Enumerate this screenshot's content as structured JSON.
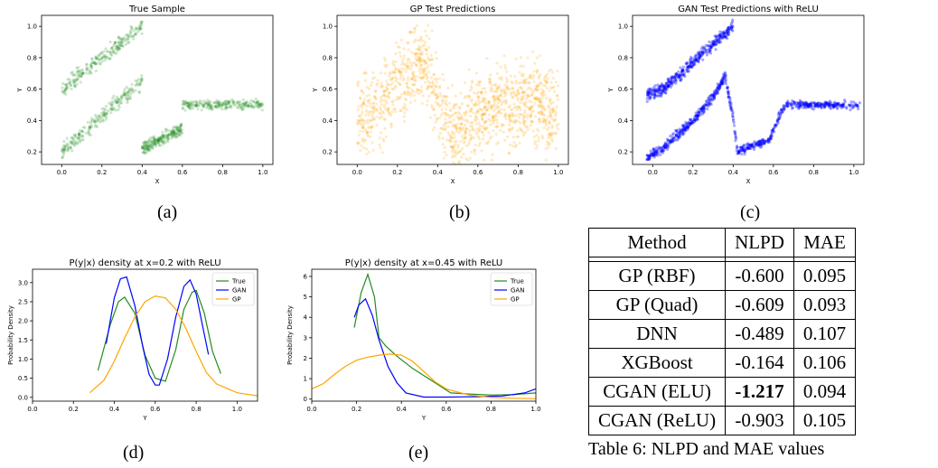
{
  "figures": {
    "captions": [
      "(a)",
      "(b)",
      "(c)",
      "(d)",
      "(e)"
    ]
  },
  "table": {
    "headers": [
      "Method",
      "NLPD",
      "MAE"
    ],
    "rows": [
      [
        "GP (RBF)",
        "-0.600",
        "0.095"
      ],
      [
        "GP (Quad)",
        "-0.609",
        "0.093"
      ],
      [
        "DNN",
        "-0.489",
        "0.107"
      ],
      [
        "XGBoost",
        "-0.164",
        "0.106"
      ],
      [
        "CGAN (ELU)",
        "-1.217",
        "0.094"
      ],
      [
        "CGAN (ReLU)",
        "-0.903",
        "0.105"
      ]
    ],
    "caption": "Table 6: NLPD and MAE values"
  },
  "colors": {
    "true": "#228B22",
    "gan": "#0000ff",
    "gp": "#ffa500"
  },
  "chart_data": [
    {
      "type": "scatter",
      "title": "True Sample",
      "xlabel": "X",
      "ylabel": "Y",
      "xlim": [
        -0.1,
        1.05
      ],
      "ylim": [
        0.12,
        1.07
      ],
      "xticks": [
        "0.0",
        "0.2",
        "0.4",
        "0.6",
        "0.8",
        "1.0"
      ],
      "yticks": [
        "0.2",
        "0.4",
        "0.6",
        "0.8",
        "1.0"
      ],
      "series": [
        {
          "color": "#228B22",
          "x": [
            0.0,
            0.4
          ],
          "y": [
            0.6,
            1.0
          ],
          "spread": 0.025
        },
        {
          "color": "#228B22",
          "x": [
            0.0,
            0.4
          ],
          "y": [
            0.2,
            0.65
          ],
          "spread": 0.025
        },
        {
          "color": "#228B22",
          "x": [
            0.4,
            0.6
          ],
          "y": [
            0.22,
            0.35
          ],
          "spread": 0.02
        },
        {
          "color": "#228B22",
          "x": [
            0.6,
            1.0
          ],
          "y": [
            0.5,
            0.5
          ],
          "spread": 0.015
        }
      ]
    },
    {
      "type": "scatter",
      "title": "GP Test Predictions",
      "xlabel": "X",
      "ylabel": "Y",
      "xlim": [
        -0.1,
        1.05
      ],
      "ylim": [
        0.12,
        1.07
      ],
      "xticks": [
        "0.0",
        "0.2",
        "0.4",
        "0.6",
        "0.8",
        "1.0"
      ],
      "yticks": [
        "0.2",
        "0.4",
        "0.6",
        "0.8",
        "1.0"
      ],
      "series": [
        {
          "color": "#ffa500",
          "x": [
            0.0,
            0.1,
            0.2,
            0.3,
            0.35,
            0.45,
            0.5,
            0.6,
            0.7,
            0.8,
            0.9,
            1.0
          ],
          "y": [
            0.4,
            0.5,
            0.62,
            0.76,
            0.72,
            0.38,
            0.3,
            0.45,
            0.5,
            0.52,
            0.5,
            0.45
          ],
          "spread": 0.13
        }
      ]
    },
    {
      "type": "scatter",
      "title": "GAN Test Predictions with ReLU",
      "xlabel": "X",
      "ylabel": "Y",
      "xlim": [
        -0.1,
        1.05
      ],
      "ylim": [
        0.12,
        1.07
      ],
      "xticks": [
        "0.0",
        "0.2",
        "0.4",
        "0.6",
        "0.8",
        "1.0"
      ],
      "yticks": [
        "0.2",
        "0.4",
        "0.6",
        "0.8",
        "1.0"
      ],
      "series": [
        {
          "color": "#0000ff",
          "x": [
            -0.03,
            0.05,
            0.4
          ],
          "y": [
            0.56,
            0.6,
            1.0
          ],
          "spread": 0.02
        },
        {
          "color": "#0000ff",
          "x": [
            -0.03,
            0.05,
            0.2,
            0.3,
            0.36,
            0.4,
            0.42
          ],
          "y": [
            0.16,
            0.22,
            0.4,
            0.55,
            0.68,
            0.42,
            0.2
          ],
          "spread": 0.015
        },
        {
          "color": "#0000ff",
          "x": [
            0.42,
            0.5,
            0.58,
            0.62,
            0.66,
            0.8,
            1.03
          ],
          "y": [
            0.2,
            0.24,
            0.27,
            0.4,
            0.5,
            0.5,
            0.5
          ],
          "spread": 0.012
        }
      ]
    },
    {
      "type": "line",
      "title": "P(y|x) density at x=0.2 with ReLU",
      "xlabel": "Y",
      "ylabel": "Probability Density",
      "xlim": [
        0.0,
        1.1
      ],
      "ylim": [
        -0.1,
        3.35
      ],
      "xticks": [
        "0.0",
        "0.2",
        "0.4",
        "0.6",
        "0.8",
        "1.0"
      ],
      "yticks": [
        "0.0",
        "0.5",
        "1.0",
        "1.5",
        "2.0",
        "2.5",
        "3.0"
      ],
      "legend": [
        "True",
        "GAN",
        "GP"
      ],
      "legend_position": "top-right",
      "series": [
        {
          "name": "True",
          "color": "#228B22",
          "x": [
            0.32,
            0.38,
            0.42,
            0.45,
            0.5,
            0.55,
            0.6,
            0.65,
            0.7,
            0.74,
            0.78,
            0.8,
            0.84,
            0.88,
            0.92
          ],
          "y": [
            0.7,
            1.9,
            2.5,
            2.62,
            2.2,
            1.1,
            0.5,
            0.42,
            1.25,
            2.3,
            2.75,
            2.8,
            2.2,
            1.2,
            0.62
          ]
        },
        {
          "name": "GAN",
          "color": "#0000ff",
          "x": [
            0.36,
            0.4,
            0.43,
            0.46,
            0.5,
            0.54,
            0.57,
            0.6,
            0.62,
            0.66,
            0.7,
            0.74,
            0.77,
            0.8,
            0.83,
            0.86
          ],
          "y": [
            1.4,
            2.6,
            3.1,
            3.15,
            2.4,
            1.3,
            0.6,
            0.32,
            0.32,
            1.0,
            2.1,
            2.9,
            3.07,
            2.7,
            1.9,
            1.12
          ]
        },
        {
          "name": "GP",
          "color": "#ffa500",
          "x": [
            0.28,
            0.35,
            0.4,
            0.45,
            0.5,
            0.55,
            0.6,
            0.65,
            0.7,
            0.75,
            0.8,
            0.85,
            0.9,
            1.0,
            1.1
          ],
          "y": [
            0.12,
            0.45,
            0.95,
            1.55,
            2.1,
            2.5,
            2.65,
            2.6,
            2.3,
            1.8,
            1.2,
            0.65,
            0.35,
            0.12,
            0.04
          ]
        }
      ]
    },
    {
      "type": "line",
      "title": "P(y|x) density at x=0.45 with ReLU",
      "xlabel": "Y",
      "ylabel": "Probability Density",
      "xlim": [
        0.0,
        1.0
      ],
      "ylim": [
        -0.1,
        6.35
      ],
      "xticks": [
        "0.0",
        "0.2",
        "0.4",
        "0.6",
        "0.8",
        "1.0"
      ],
      "yticks": [
        "0",
        "1",
        "2",
        "3",
        "4",
        "5",
        "6"
      ],
      "legend": [
        "True",
        "GAN",
        "GP"
      ],
      "legend_position": "top-right",
      "series": [
        {
          "name": "True",
          "color": "#228B22",
          "x": [
            0.19,
            0.22,
            0.25,
            0.28,
            0.3,
            0.33,
            0.38,
            0.45,
            0.55,
            0.62,
            0.7,
            0.8,
            0.9,
            1.0
          ],
          "y": [
            3.5,
            5.2,
            6.1,
            5.0,
            3.0,
            2.6,
            2.1,
            1.5,
            0.8,
            0.3,
            0.25,
            0.2,
            0.22,
            0.3
          ]
        },
        {
          "name": "GAN",
          "color": "#0000ff",
          "x": [
            0.19,
            0.21,
            0.24,
            0.27,
            0.3,
            0.34,
            0.38,
            0.42,
            0.5,
            0.6,
            0.75,
            0.85,
            0.95,
            1.0
          ],
          "y": [
            4.0,
            4.6,
            4.9,
            4.1,
            2.9,
            1.6,
            0.8,
            0.3,
            0.1,
            0.1,
            0.12,
            0.15,
            0.3,
            0.5
          ]
        },
        {
          "name": "GP",
          "color": "#ffa500",
          "x": [
            0.0,
            0.05,
            0.1,
            0.15,
            0.2,
            0.25,
            0.3,
            0.35,
            0.4,
            0.45,
            0.5,
            0.55,
            0.6,
            0.7,
            0.8,
            0.9,
            1.0
          ],
          "y": [
            0.5,
            0.75,
            1.2,
            1.6,
            1.9,
            2.05,
            2.15,
            2.2,
            2.15,
            1.85,
            1.35,
            0.85,
            0.5,
            0.2,
            0.08,
            0.04,
            0.02
          ]
        }
      ]
    }
  ]
}
